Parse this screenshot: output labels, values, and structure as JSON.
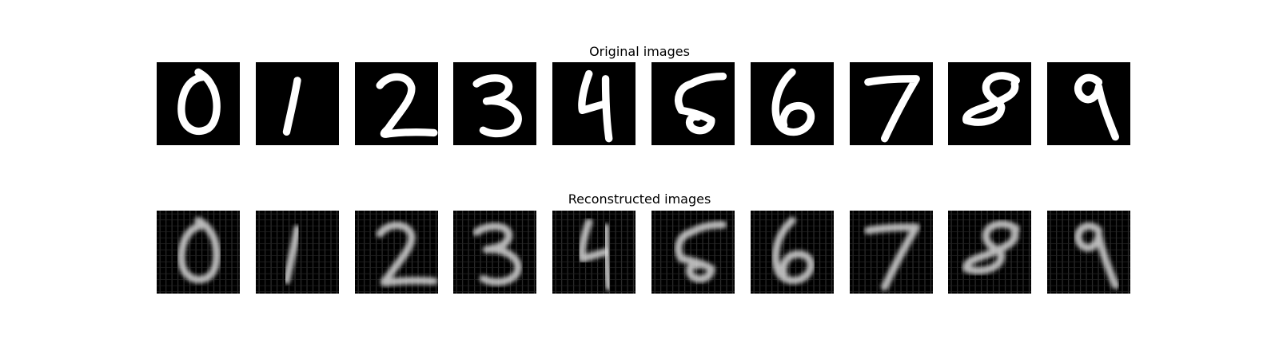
{
  "figure": {
    "rows": [
      {
        "title": "Original images",
        "kind": "original",
        "digits": [
          "0",
          "1",
          "2",
          "3",
          "4",
          "5",
          "6",
          "7",
          "8",
          "9"
        ]
      },
      {
        "title": "Reconstructed images",
        "kind": "reconstructed",
        "digits": [
          "0",
          "1",
          "2",
          "3",
          "4",
          "5",
          "6",
          "7",
          "8",
          "9"
        ]
      }
    ],
    "colors": {
      "background": "#ffffff",
      "tile": "#000000",
      "stroke_original": "#ffffff",
      "stroke_reconstructed": "#d8d8d8"
    }
  }
}
